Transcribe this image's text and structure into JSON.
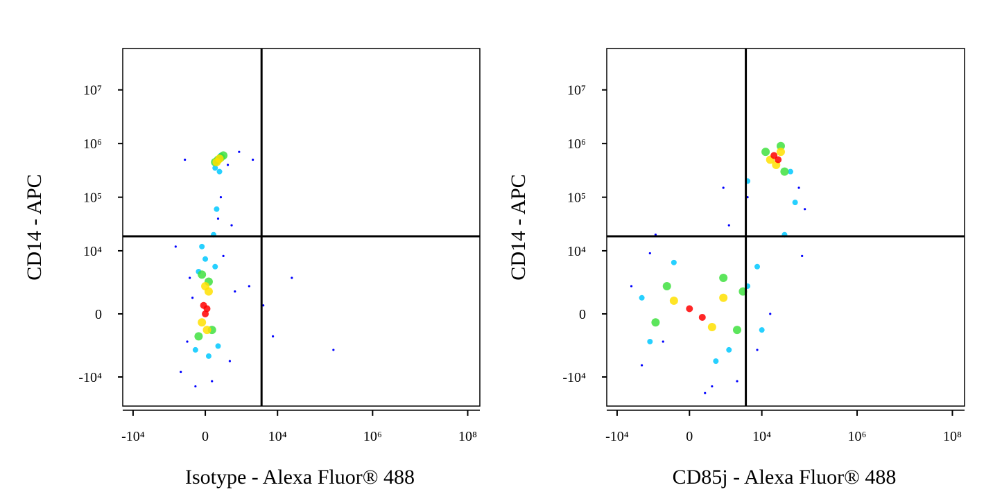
{
  "chart_data": [
    {
      "type": "scatter",
      "xlabel": "Isotype - Alexa Fluor® 488",
      "ylabel": "CD14 - APC",
      "xscale": "logicle",
      "yscale": "logicle",
      "xlim": [
        -16500,
        180000000
      ],
      "ylim": [
        -35000,
        59000000
      ],
      "xticks": [
        {
          "value": -10000,
          "label": "-10⁴"
        },
        0,
        {
          "value": 10000,
          "label": "10⁴"
        },
        {
          "value": 1000000,
          "label": "10⁶"
        },
        {
          "value": 100000000,
          "label": "10⁸"
        }
      ],
      "yticks": [
        {
          "value": -10000,
          "label": "-10⁴"
        },
        0,
        {
          "value": 10000,
          "label": "10⁴"
        },
        {
          "value": 100000,
          "label": "10⁵"
        },
        {
          "value": 1000000,
          "label": "10⁶"
        },
        {
          "value": 10000000,
          "label": "10⁷"
        }
      ],
      "gates": {
        "x": 4600,
        "y": 18700
      },
      "series": [
        {
          "color": "#0000ff",
          "x": [
            -900,
            -500,
            600,
            900,
            1200,
            2500,
            5000,
            8000,
            20000,
            150000,
            -300,
            200,
            -700,
            800,
            1500,
            3000,
            -1200,
            400,
            1000,
            -400,
            500,
            -600
          ],
          "y": [
            -8000,
            3000,
            8000,
            -5000,
            1500,
            2000,
            500,
            -1500,
            3000,
            -3000,
            -15000,
            -12000,
            500000,
            400000,
            700000,
            500000,
            12000,
            40000,
            30000,
            1000,
            100000,
            -2000
          ]
        },
        {
          "color": "#00c8ff",
          "x": [
            -300,
            -200,
            300,
            400,
            0,
            100,
            -100,
            250,
            300,
            500,
            450,
            350
          ],
          "y": [
            -3000,
            4000,
            5000,
            -2500,
            7000,
            -4000,
            12000,
            20000,
            350000,
            600000,
            300000,
            60000
          ]
        },
        {
          "color": "#40e040",
          "x": [
            -200,
            200,
            100,
            -100,
            300,
            500,
            400,
            600
          ],
          "y": [
            -1500,
            -1000,
            2500,
            3500,
            450000,
            550000,
            500000,
            600000
          ]
        },
        {
          "color": "#ffe000",
          "x": [
            -100,
            100,
            0,
            50,
            350,
            450
          ],
          "y": [
            -500,
            1500,
            2000,
            -1000,
            450000,
            520000
          ]
        },
        {
          "color": "#ff0000",
          "x": [
            0,
            -50,
            50
          ],
          "y": [
            0,
            500,
            300
          ]
        }
      ]
    },
    {
      "type": "scatter",
      "xlabel": "CD85j - Alexa Fluor® 488",
      "ylabel": "CD14 - APC",
      "xscale": "logicle",
      "yscale": "logicle",
      "xlim": [
        -16500,
        180000000
      ],
      "ylim": [
        -35000,
        59000000
      ],
      "xticks": [
        {
          "value": -10000,
          "label": "-10⁴"
        },
        0,
        {
          "value": 10000,
          "label": "10⁴"
        },
        {
          "value": 1000000,
          "label": "10⁶"
        },
        {
          "value": 100000000,
          "label": "10⁸"
        }
      ],
      "yticks": [
        {
          "value": -10000,
          "label": "-10⁴"
        },
        0,
        {
          "value": 10000,
          "label": "10⁴"
        },
        {
          "value": 100000,
          "label": "10⁵"
        },
        {
          "value": 1000000,
          "label": "10⁶"
        },
        {
          "value": 10000000,
          "label": "10⁷"
        }
      ],
      "gates": {
        "x": 4600,
        "y": 18700
      },
      "series": [
        {
          "color": "#0000ff",
          "x": [
            -5000,
            -3000,
            -1500,
            800,
            3000,
            8000,
            15000,
            -2000,
            2000,
            500,
            60000,
            80000,
            5000,
            -1000,
            1500,
            70000
          ],
          "y": [
            2000,
            -6000,
            20000,
            -15000,
            -12000,
            -3000,
            0,
            9000,
            30000,
            -20000,
            150000,
            60000,
            100000,
            -2000,
            150000,
            8000
          ]
        },
        {
          "color": "#00c8ff",
          "x": [
            -3000,
            -2000,
            2000,
            5000,
            8000,
            -500,
            1000,
            10000,
            30000,
            50000,
            5000,
            40000
          ],
          "y": [
            1000,
            -2000,
            -3000,
            2000,
            5000,
            6000,
            -5000,
            -1000,
            20000,
            80000,
            200000,
            300000
          ]
        },
        {
          "color": "#40e040",
          "x": [
            -1500,
            -800,
            1500,
            3000,
            4000,
            12000,
            30000,
            25000
          ],
          "y": [
            -500,
            2000,
            3000,
            -1000,
            1500,
            700000,
            300000,
            900000
          ]
        },
        {
          "color": "#ffe000",
          "x": [
            -500,
            800,
            1500,
            15000,
            25000,
            20000
          ],
          "y": [
            800,
            -800,
            1000,
            500000,
            700000,
            400000
          ]
        },
        {
          "color": "#ff0000",
          "x": [
            0,
            400,
            18000,
            22000
          ],
          "y": [
            300,
            -200,
            600000,
            500000
          ]
        }
      ]
    }
  ]
}
